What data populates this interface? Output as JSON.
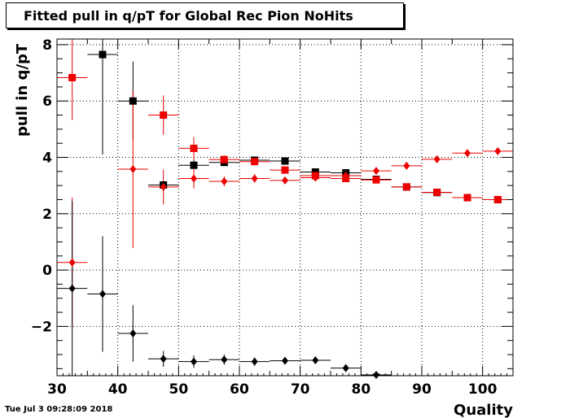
{
  "title": "Fitted pull in q/pT for Global Rec Pion NoHits",
  "footer": "Tue Jul  3 09:28:09 2018",
  "colors": {
    "black_series": "#000000",
    "red_series": "#ee0000",
    "grid": "#000000",
    "background": "#ffffff"
  },
  "chart_data": {
    "type": "scatter",
    "title": "Fitted pull in q/pT for Global Rec Pion NoHits",
    "xlabel": "Quality",
    "ylabel": "pull in q/pT",
    "xlim": [
      30,
      105
    ],
    "ylim": [
      -3.75,
      8.2
    ],
    "x_ticks": [
      30,
      40,
      50,
      60,
      70,
      80,
      90,
      100
    ],
    "y_ticks": [
      -2,
      0,
      2,
      4,
      6,
      8
    ],
    "grid": true,
    "series": [
      {
        "marker": "square",
        "color": "#000000",
        "points": [
          {
            "x": 37.5,
            "y": 7.65,
            "yerr": 3.55
          },
          {
            "x": 42.5,
            "y": 6.0,
            "yerr": 1.4
          },
          {
            "x": 47.5,
            "y": 3.02,
            "yerr": 0.1
          },
          {
            "x": 52.5,
            "y": 3.72,
            "yerr": 0.2
          },
          {
            "x": 57.5,
            "y": 3.82,
            "yerr": 0.12
          },
          {
            "x": 62.5,
            "y": 3.9,
            "yerr": 0.1
          },
          {
            "x": 67.5,
            "y": 3.87,
            "yerr": 0.08
          },
          {
            "x": 72.5,
            "y": 3.48,
            "yerr": 0.05
          },
          {
            "x": 77.5,
            "y": 3.45,
            "yerr": 0.04
          },
          {
            "x": 82.5,
            "y": 3.22,
            "yerr": 0.03
          },
          {
            "x": 87.5,
            "y": 2.95,
            "yerr": 0.03
          },
          {
            "x": 92.5,
            "y": 2.75,
            "yerr": 0.02
          },
          {
            "x": 97.5,
            "y": 2.57,
            "yerr": 0.02
          },
          {
            "x": 102.5,
            "y": 2.5,
            "yerr": 0.02
          }
        ]
      },
      {
        "marker": "square",
        "color": "#ee0000",
        "points": [
          {
            "x": 32.5,
            "y": 6.83,
            "yerr": 1.5
          },
          {
            "x": 47.5,
            "y": 5.5,
            "yerr": 0.7
          },
          {
            "x": 52.5,
            "y": 4.32,
            "yerr": 0.4
          },
          {
            "x": 57.5,
            "y": 3.92,
            "yerr": 0.15
          },
          {
            "x": 62.5,
            "y": 3.85,
            "yerr": 0.1
          },
          {
            "x": 67.5,
            "y": 3.55,
            "yerr": 0.08
          },
          {
            "x": 72.5,
            "y": 3.35,
            "yerr": 0.05
          },
          {
            "x": 77.5,
            "y": 3.25,
            "yerr": 0.04
          },
          {
            "x": 82.5,
            "y": 3.2,
            "yerr": 0.03
          },
          {
            "x": 87.5,
            "y": 2.95,
            "yerr": 0.03
          },
          {
            "x": 92.5,
            "y": 2.76,
            "yerr": 0.02
          },
          {
            "x": 97.5,
            "y": 2.57,
            "yerr": 0.02
          },
          {
            "x": 102.5,
            "y": 2.5,
            "yerr": 0.02
          }
        ]
      },
      {
        "marker": "diamond",
        "color": "#ee0000",
        "points": [
          {
            "x": 32.5,
            "y": 0.27,
            "yerr": 2.3
          },
          {
            "x": 42.5,
            "y": 3.58,
            "yerr": 2.8
          },
          {
            "x": 47.5,
            "y": 2.95,
            "yerr": 0.62
          },
          {
            "x": 52.5,
            "y": 3.25,
            "yerr": 0.35
          },
          {
            "x": 57.5,
            "y": 3.15,
            "yerr": 0.18
          },
          {
            "x": 62.5,
            "y": 3.25,
            "yerr": 0.15
          },
          {
            "x": 67.5,
            "y": 3.18,
            "yerr": 0.08
          },
          {
            "x": 72.5,
            "y": 3.28,
            "yerr": 0.05
          },
          {
            "x": 77.5,
            "y": 3.35,
            "yerr": 0.04
          },
          {
            "x": 82.5,
            "y": 3.52,
            "yerr": 0.03
          },
          {
            "x": 87.5,
            "y": 3.7,
            "yerr": 0.03
          },
          {
            "x": 92.5,
            "y": 3.93,
            "yerr": 0.02
          },
          {
            "x": 97.5,
            "y": 4.15,
            "yerr": 0.02
          },
          {
            "x": 102.5,
            "y": 4.22,
            "yerr": 0.02
          }
        ]
      },
      {
        "marker": "diamond",
        "color": "#000000",
        "points": [
          {
            "x": 32.5,
            "y": -0.65,
            "yerr": 3.1
          },
          {
            "x": 37.5,
            "y": -0.85,
            "yerr": 2.05
          },
          {
            "x": 42.5,
            "y": -2.25,
            "yerr": 1.0
          },
          {
            "x": 47.5,
            "y": -3.15,
            "yerr": 0.28
          },
          {
            "x": 52.5,
            "y": -3.25,
            "yerr": 0.22
          },
          {
            "x": 57.5,
            "y": -3.18,
            "yerr": 0.18
          },
          {
            "x": 62.5,
            "y": -3.25,
            "yerr": 0.15
          },
          {
            "x": 67.5,
            "y": -3.22,
            "yerr": 0.1
          },
          {
            "x": 72.5,
            "y": -3.2,
            "yerr": 0.08
          },
          {
            "x": 77.5,
            "y": -3.48,
            "yerr": 0.05
          },
          {
            "x": 82.5,
            "y": -3.72,
            "yerr": 0.03
          }
        ]
      }
    ]
  }
}
